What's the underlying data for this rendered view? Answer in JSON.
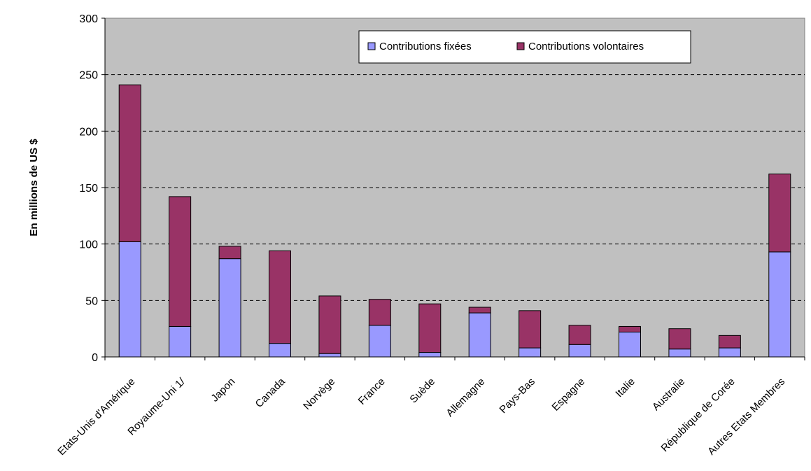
{
  "chart_data": {
    "type": "bar",
    "stacked": true,
    "categories": [
      "Etats-Unis d'Amérique",
      "Royaume-Uni 1/",
      "Japon",
      "Canada",
      "Norvège",
      "France",
      "Suède",
      "Allemagne",
      "Pays-Bas",
      "Espagne",
      "Italie",
      "Australie",
      "République de Corée",
      "Autres Etats Membres"
    ],
    "series": [
      {
        "name": "Contributions fixées",
        "color": "#9999ff",
        "values": [
          102,
          27,
          87,
          12,
          3,
          28,
          4,
          39,
          8,
          11,
          22,
          7,
          8,
          93
        ]
      },
      {
        "name": "Contributions volontaires",
        "color": "#993366",
        "values": [
          139,
          115,
          11,
          82,
          51,
          23,
          43,
          5,
          33,
          17,
          5,
          18,
          11,
          69
        ]
      }
    ],
    "title": "",
    "xlabel": "",
    "ylabel": "En millions de US $",
    "ylim": [
      0,
      300
    ],
    "yticks": [
      0,
      50,
      100,
      150,
      200,
      250,
      300
    ],
    "grid": "horizontal dashed",
    "plot_background": "#c0c0c0",
    "legend_position": "top-right"
  }
}
